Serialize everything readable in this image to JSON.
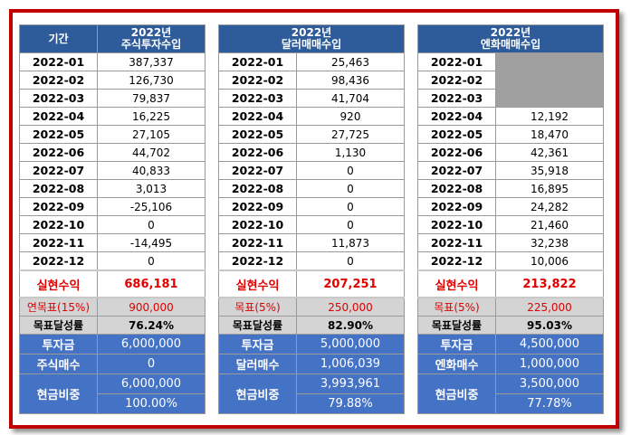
{
  "panels": [
    {
      "header_col1": "기간",
      "header_col2_line1": "2022년",
      "header_col2_line2": "주식투자수입",
      "rows": [
        {
          "month": "2022-01",
          "value": "387,337"
        },
        {
          "month": "2022-02",
          "value": "126,730"
        },
        {
          "month": "2022-03",
          "value": "79,837"
        },
        {
          "month": "2022-04",
          "value": "16,225"
        },
        {
          "month": "2022-05",
          "value": "27,105"
        },
        {
          "month": "2022-06",
          "value": "44,702"
        },
        {
          "month": "2022-07",
          "value": "40,833"
        },
        {
          "month": "2022-08",
          "value": "3,013"
        },
        {
          "month": "2022-09",
          "value": "-25,106"
        },
        {
          "month": "2022-10",
          "value": "0"
        },
        {
          "month": "2022-11",
          "value": "-14,495"
        },
        {
          "month": "2022-12",
          "value": "0"
        }
      ],
      "realized_label": "실현수익",
      "realized_value": "686,181",
      "goal_label": "연목표(15%)",
      "goal_value": "900,000",
      "rate_label": "목표달성률",
      "rate_value": "76.24%",
      "invest_label": "투자금",
      "invest_value": "6,000,000",
      "shares_label": "주식매수",
      "shares_value": "0",
      "cash_label": "현금비중",
      "cash_amount": "6,000,000",
      "cash_pct": "100.00%"
    },
    {
      "header_col1": "",
      "header_col2_line1": "2022년",
      "header_col2_line2": "달러매매수입",
      "rows": [
        {
          "month": "2022-01",
          "value": "25,463"
        },
        {
          "month": "2022-02",
          "value": "98,436"
        },
        {
          "month": "2022-03",
          "value": "41,704"
        },
        {
          "month": "2022-04",
          "value": "920"
        },
        {
          "month": "2022-05",
          "value": "27,725"
        },
        {
          "month": "2022-06",
          "value": "1,130"
        },
        {
          "month": "2022-07",
          "value": "0"
        },
        {
          "month": "2022-08",
          "value": "0"
        },
        {
          "month": "2022-09",
          "value": "0"
        },
        {
          "month": "2022-10",
          "value": "0"
        },
        {
          "month": "2022-11",
          "value": "11,873"
        },
        {
          "month": "2022-12",
          "value": "0"
        }
      ],
      "realized_label": "실현수익",
      "realized_value": "207,251",
      "goal_label": "목표(5%)",
      "goal_value": "250,000",
      "rate_label": "목표달성률",
      "rate_value": "82.90%",
      "invest_label": "투자금",
      "invest_value": "5,000,000",
      "shares_label": "달러매수",
      "shares_value": "1,006,039",
      "cash_label": "현금비중",
      "cash_amount": "3,993,961",
      "cash_pct": "79.88%"
    },
    {
      "header_col1": "",
      "header_col2_line1": "2022년",
      "header_col2_line2": "엔화매매수입",
      "rows": [
        {
          "month": "2022-01",
          "value": ""
        },
        {
          "month": "2022-02",
          "value": ""
        },
        {
          "month": "2022-03",
          "value": ""
        },
        {
          "month": "2022-04",
          "value": "12,192"
        },
        {
          "month": "2022-05",
          "value": "18,470"
        },
        {
          "month": "2022-06",
          "value": "42,361"
        },
        {
          "month": "2022-07",
          "value": "35,918"
        },
        {
          "month": "2022-08",
          "value": "16,895"
        },
        {
          "month": "2022-09",
          "value": "24,282"
        },
        {
          "month": "2022-10",
          "value": "21,460"
        },
        {
          "month": "2022-11",
          "value": "32,238"
        },
        {
          "month": "2022-12",
          "value": "10,006"
        }
      ],
      "realized_label": "실현수익",
      "realized_value": "213,822",
      "goal_label": "목표(5%)",
      "goal_value": "225,000",
      "rate_label": "목표달성률",
      "rate_value": "95.03%",
      "invest_label": "투자금",
      "invest_value": "4,500,000",
      "shares_label": "엔화매수",
      "shares_value": "1,000,000",
      "cash_label": "현금비중",
      "cash_amount": "3,500,000",
      "cash_pct": "77.78%"
    }
  ],
  "colors": {
    "frame_border": "#c00000",
    "header_bg": "#2e5c9a",
    "summary_bg": "#4472c4",
    "goal_bg": "#d4d4d4",
    "realized_text": "#e00000",
    "empty_cell": "#a0a0a0"
  }
}
